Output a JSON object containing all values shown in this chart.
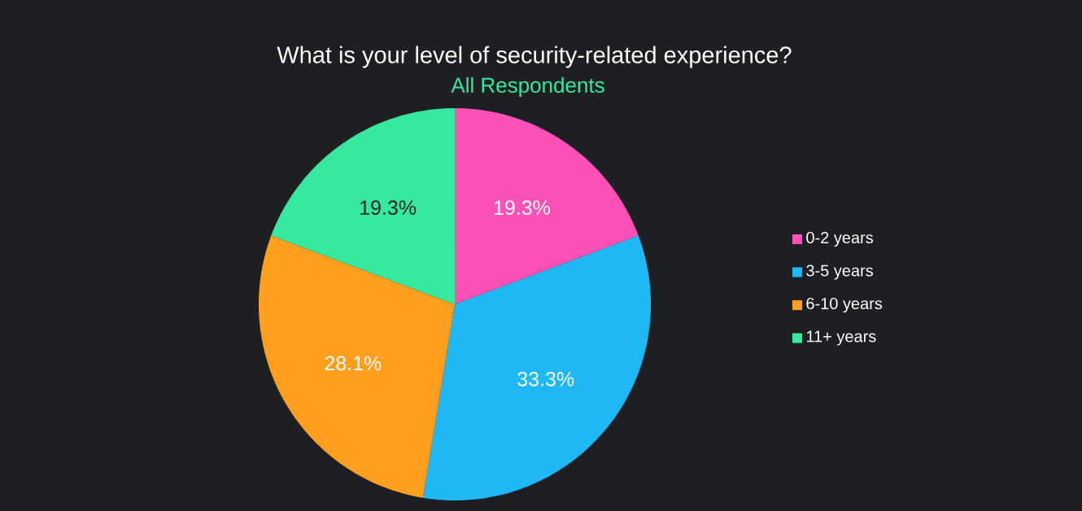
{
  "chart_data": {
    "type": "pie",
    "title": "What is your level of security-related experience?",
    "subtitle": "All Respondents",
    "categories": [
      "0-2 years",
      "3-5 years",
      "6-10 years",
      "11+ years"
    ],
    "values": [
      19.3,
      33.3,
      28.1,
      19.3
    ],
    "value_labels": [
      "19.3%",
      "33.3%",
      "28.1%",
      "19.3%"
    ],
    "colors": [
      "#fb51b6",
      "#20b8f4",
      "#ff9f1f",
      "#36e8a0"
    ],
    "legend": "right"
  }
}
